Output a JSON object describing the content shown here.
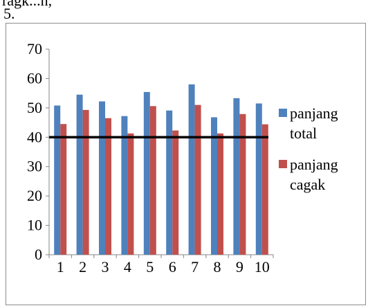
{
  "page": {
    "top_fragment": "ragk...n,",
    "figure_number": "5."
  },
  "chart_data": {
    "type": "bar",
    "categories": [
      "1",
      "2",
      "3",
      "4",
      "5",
      "6",
      "7",
      "8",
      "9",
      "10"
    ],
    "series": [
      {
        "name": "panjang total",
        "legend_lines": [
          "panjang",
          "total"
        ],
        "color": "#4f81bd",
        "values": [
          50.8,
          54.5,
          52.2,
          47.2,
          55.4,
          49.1,
          58.0,
          46.8,
          53.3,
          51.5
        ]
      },
      {
        "name": "panjang cagak",
        "legend_lines": [
          "panjang",
          "cagak"
        ],
        "color": "#c0504d",
        "values": [
          44.5,
          49.3,
          46.5,
          41.3,
          50.6,
          42.3,
          51.0,
          41.3,
          47.9,
          44.4
        ]
      }
    ],
    "reference_line": {
      "value": 40,
      "color": "#000000"
    },
    "ylim": [
      0,
      70
    ],
    "yticks": [
      0,
      10,
      20,
      30,
      40,
      50,
      60,
      70
    ],
    "legend_position": "right",
    "grid": false
  }
}
